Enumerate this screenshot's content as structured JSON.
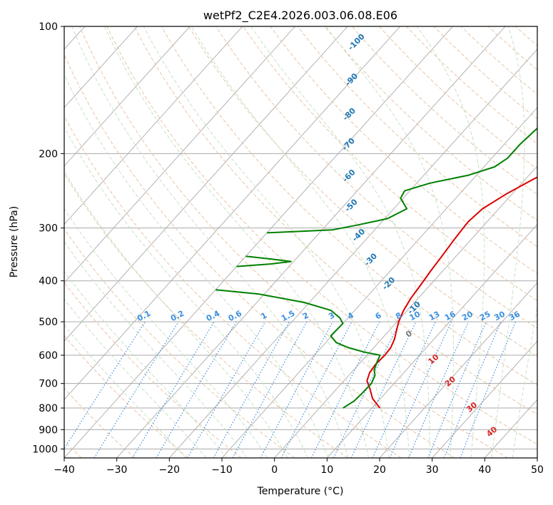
{
  "chart_data": {
    "type": "skew-t",
    "title": "wetPf2_C2E4.2026.003.06.08.E06",
    "xlabel": "Temperature (°C)",
    "ylabel": "Pressure (hPa)",
    "xlim": [
      -40,
      50
    ],
    "ylim": [
      1050,
      100
    ],
    "x_ticks": [
      -40,
      -30,
      -20,
      -10,
      0,
      10,
      20,
      30,
      40,
      50
    ],
    "x_tick_labels": [
      "−40",
      "−30",
      "−20",
      "−10",
      "0",
      "10",
      "20",
      "30",
      "40",
      "50"
    ],
    "y_ticks": [
      100,
      200,
      300,
      400,
      500,
      600,
      700,
      800,
      900,
      1000
    ],
    "y_tick_labels": [
      "100",
      "200",
      "300",
      "400",
      "500",
      "600",
      "700",
      "800",
      "900",
      "1000"
    ],
    "colors": {
      "temperature": "#dd0000",
      "dewpoint": "#008000",
      "isotherm": "#aaaaaa",
      "isobar": "#aaaaaa",
      "dry_adiabat": "#e8c4a4",
      "moist_adiabat": "#c6e2c2",
      "mixing_ratio": "#3a8fe0",
      "wetbulb_label": "#d62728",
      "height_label": "#1f77b4",
      "frame": "#000000"
    },
    "series": [
      {
        "name": "temperature",
        "points": [
          [
            800,
            11.5
          ],
          [
            760,
            8.5
          ],
          [
            720,
            6.3
          ],
          [
            690,
            4.4
          ],
          [
            660,
            3.5
          ],
          [
            630,
            3.2
          ],
          [
            600,
            3.4
          ],
          [
            575,
            3.2
          ],
          [
            550,
            2.5
          ],
          [
            520,
            1.2
          ],
          [
            500,
            0.3
          ],
          [
            470,
            -0.7
          ],
          [
            440,
            -1.4
          ],
          [
            410,
            -1.8
          ],
          [
            380,
            -2.3
          ],
          [
            350,
            -2.7
          ],
          [
            320,
            -3.2
          ],
          [
            290,
            -3.6
          ],
          [
            270,
            -3.1
          ],
          [
            250,
            -1.2
          ],
          [
            230,
            1.5
          ],
          [
            210,
            4.8
          ],
          [
            190,
            7.6
          ],
          [
            170,
            9.7
          ],
          [
            150,
            11.0
          ],
          [
            135,
            12.8
          ],
          [
            125,
            14.0
          ],
          [
            115,
            15.0
          ],
          [
            105,
            18.8
          ],
          [
            100,
            21.0
          ]
        ]
      },
      {
        "name": "dewpoint",
        "points": [
          [
            800,
            4.5
          ],
          [
            770,
            5.4
          ],
          [
            740,
            5.6
          ],
          [
            700,
            5.7
          ],
          [
            670,
            5.0
          ],
          [
            650,
            3.9
          ],
          [
            620,
            3.0
          ],
          [
            600,
            2.5
          ],
          [
            590,
            -1.0
          ],
          [
            575,
            -5.0
          ],
          [
            560,
            -8.0
          ],
          [
            540,
            -10.2
          ],
          [
            520,
            -10.1
          ],
          [
            505,
            -10.0
          ],
          [
            490,
            -11.5
          ],
          [
            470,
            -14.5
          ],
          [
            450,
            -21.0
          ],
          [
            430,
            -31.0
          ],
          [
            420,
            -40.0
          ]
        ]
      },
      {
        "name": "dewpoint-upper",
        "points": [
          [
            370,
            -40.0
          ],
          [
            365,
            -34.0
          ],
          [
            360,
            -30.5
          ],
          [
            356,
            -34.0
          ],
          [
            350,
            -40.0
          ]
        ]
      },
      {
        "name": "dewpoint-top",
        "points": [
          [
            308,
            -40.0
          ],
          [
            303,
            -28.0
          ],
          [
            295,
            -24.0
          ],
          [
            285,
            -19.5
          ],
          [
            270,
            -17.5
          ],
          [
            255,
            -20.5
          ],
          [
            245,
            -21.0
          ],
          [
            235,
            -17.5
          ],
          [
            225,
            -11.5
          ],
          [
            215,
            -8.0
          ],
          [
            205,
            -7.0
          ],
          [
            190,
            -7.0
          ],
          [
            175,
            -6.5
          ],
          [
            165,
            -6.0
          ],
          [
            160,
            -5.5
          ],
          [
            145,
            -4.5
          ],
          [
            130,
            -4.0
          ],
          [
            120,
            -2.5
          ],
          [
            110,
            -2.0
          ],
          [
            100,
            -1.3
          ]
        ]
      }
    ],
    "height_labels": [
      {
        "p": 110,
        "t": -55,
        "text": "-100"
      },
      {
        "p": 135,
        "t": -49.5,
        "text": "-90"
      },
      {
        "p": 163,
        "t": -44,
        "text": "-80"
      },
      {
        "p": 192,
        "t": -39,
        "text": "-70"
      },
      {
        "p": 228,
        "t": -33.5,
        "text": "-60"
      },
      {
        "p": 268,
        "t": -28,
        "text": "-50"
      },
      {
        "p": 315,
        "t": -21.5,
        "text": "-40"
      },
      {
        "p": 360,
        "t": -15,
        "text": "-30"
      },
      {
        "p": 410,
        "t": -7.5,
        "text": "-20"
      },
      {
        "p": 468,
        "t": 1.5,
        "text": "-10"
      }
    ],
    "wetbulb_labels": [
      {
        "p": 540,
        "t": 5,
        "text": "0"
      },
      {
        "p": 620,
        "t": 14,
        "text": "10"
      },
      {
        "p": 700,
        "t": 21,
        "text": "20"
      },
      {
        "p": 805,
        "t": 29.5,
        "text": "30"
      },
      {
        "p": 920,
        "t": 37.5,
        "text": "40"
      }
    ],
    "mixing_ratio_labels": [
      "0.1",
      "0.2",
      "0.4",
      "0.6",
      "1",
      "1.5",
      "2",
      "3",
      "4",
      "6",
      "8",
      "10",
      "13",
      "16",
      "20",
      "25",
      "30",
      "36"
    ]
  }
}
